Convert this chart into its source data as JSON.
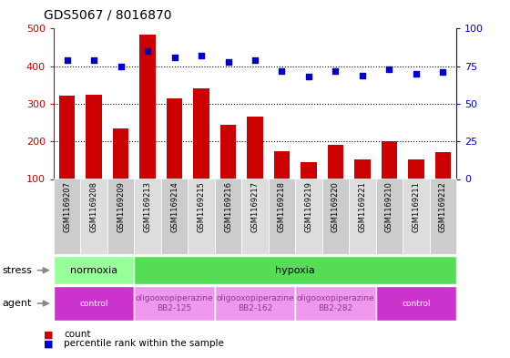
{
  "title": "GDS5067 / 8016870",
  "samples": [
    "GSM1169207",
    "GSM1169208",
    "GSM1169209",
    "GSM1169213",
    "GSM1169214",
    "GSM1169215",
    "GSM1169216",
    "GSM1169217",
    "GSM1169218",
    "GSM1169219",
    "GSM1169220",
    "GSM1169221",
    "GSM1169210",
    "GSM1169211",
    "GSM1169212"
  ],
  "counts": [
    322,
    324,
    235,
    483,
    315,
    340,
    243,
    265,
    175,
    145,
    192,
    152,
    201,
    152,
    172
  ],
  "percentiles": [
    79,
    79,
    75,
    85,
    81,
    82,
    78,
    79,
    72,
    68,
    72,
    69,
    73,
    70,
    71
  ],
  "ylim_left": [
    100,
    500
  ],
  "ylim_right": [
    0,
    100
  ],
  "yticks_left": [
    100,
    200,
    300,
    400,
    500
  ],
  "yticks_right": [
    0,
    25,
    50,
    75,
    100
  ],
  "bar_color": "#cc0000",
  "scatter_color": "#0000cc",
  "stress_groups": [
    {
      "label": "normoxia",
      "start": 0,
      "end": 3,
      "color": "#99ff99"
    },
    {
      "label": "hypoxia",
      "start": 3,
      "end": 15,
      "color": "#55dd55"
    }
  ],
  "agent_groups": [
    {
      "label": "control",
      "start": 0,
      "end": 3,
      "color": "#cc33cc",
      "text": "control",
      "text_color": "#ffffff"
    },
    {
      "label": "oligooxopiperazine\nBB2-125",
      "start": 3,
      "end": 6,
      "color": "#ee99ee",
      "text": "oligooxopiperazine\nBB2-125",
      "text_color": "#993399"
    },
    {
      "label": "oligooxopiperazine\nBB2-162",
      "start": 6,
      "end": 9,
      "color": "#ee99ee",
      "text": "oligooxopiperazine\nBB2-162",
      "text_color": "#993399"
    },
    {
      "label": "oligooxopiperazine\nBB2-282",
      "start": 9,
      "end": 12,
      "color": "#ee99ee",
      "text": "oligooxopiperazine\nBB2-282",
      "text_color": "#993399"
    },
    {
      "label": "control",
      "start": 12,
      "end": 15,
      "color": "#cc33cc",
      "text": "control",
      "text_color": "#ffffff"
    }
  ],
  "legend_count_color": "#cc0000",
  "legend_percentile_color": "#0000cc",
  "bg_color": "#ffffff",
  "tick_label_color_left": "#cc0000",
  "tick_label_color_right": "#0000cc",
  "col_bg_even": "#cccccc",
  "col_bg_odd": "#dddddd"
}
